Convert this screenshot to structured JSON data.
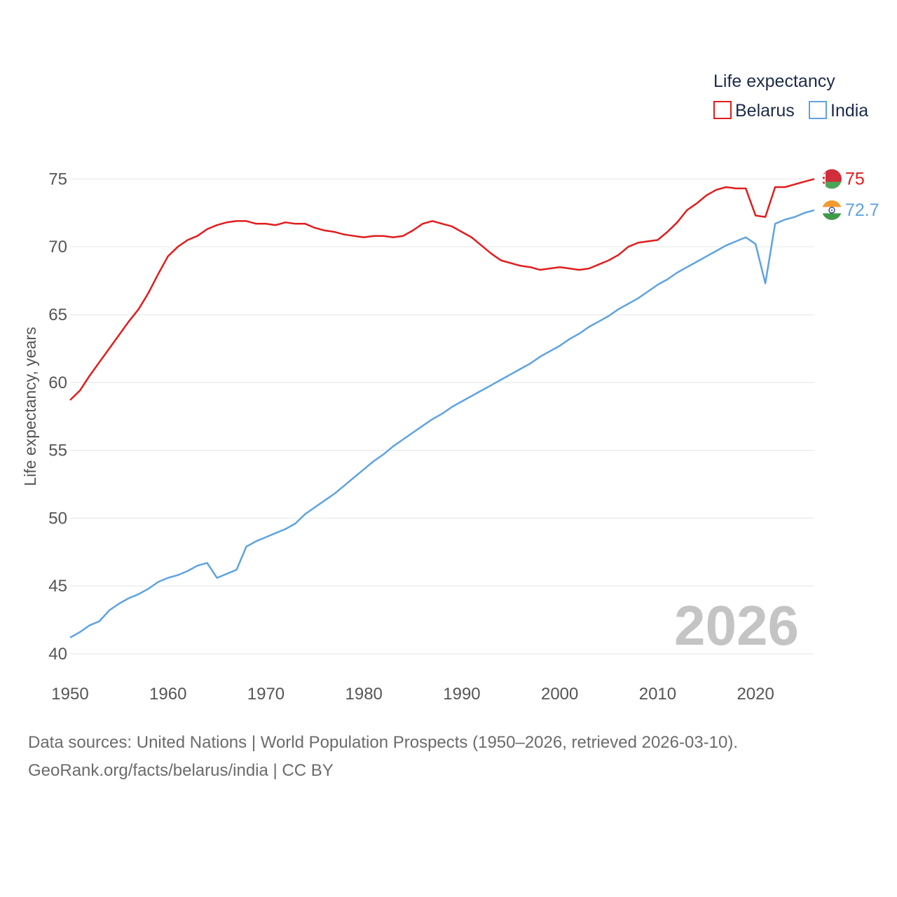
{
  "chart_data": {
    "type": "line",
    "legend": {
      "title": "Life expectancy",
      "placement": "top-right"
    },
    "ylabel": "Life expectancy, years",
    "xlim": [
      1950,
      2026
    ],
    "ylim": [
      40,
      76
    ],
    "x_ticks": [
      1950,
      1960,
      1970,
      1980,
      1990,
      2000,
      2010,
      2020
    ],
    "y_ticks": [
      40,
      45,
      50,
      55,
      60,
      65,
      70,
      75
    ],
    "year_label": "2026",
    "x": [
      1950,
      1951,
      1952,
      1953,
      1954,
      1955,
      1956,
      1957,
      1958,
      1959,
      1960,
      1961,
      1962,
      1963,
      1964,
      1965,
      1966,
      1967,
      1968,
      1969,
      1970,
      1971,
      1972,
      1973,
      1974,
      1975,
      1976,
      1977,
      1978,
      1979,
      1980,
      1981,
      1982,
      1983,
      1984,
      1985,
      1986,
      1987,
      1988,
      1989,
      1990,
      1991,
      1992,
      1993,
      1994,
      1995,
      1996,
      1997,
      1998,
      1999,
      2000,
      2001,
      2002,
      2003,
      2004,
      2005,
      2006,
      2007,
      2008,
      2009,
      2010,
      2011,
      2012,
      2013,
      2014,
      2015,
      2016,
      2017,
      2018,
      2019,
      2020,
      2021,
      2022,
      2023,
      2024,
      2025,
      2026
    ],
    "series": [
      {
        "name": "Belarus",
        "color": "#e11d1d",
        "end_label": "75",
        "flag": "belarus-flag-icon",
        "values": [
          58.7,
          59.4,
          60.5,
          61.5,
          62.5,
          63.5,
          64.5,
          65.4,
          66.6,
          68.0,
          69.3,
          70.0,
          70.5,
          70.8,
          71.3,
          71.6,
          71.8,
          71.9,
          71.9,
          71.7,
          71.7,
          71.6,
          71.8,
          71.7,
          71.7,
          71.4,
          71.2,
          71.1,
          70.9,
          70.8,
          70.7,
          70.8,
          70.8,
          70.7,
          70.8,
          71.2,
          71.7,
          71.9,
          71.7,
          71.5,
          71.1,
          70.7,
          70.1,
          69.5,
          69.0,
          68.8,
          68.6,
          68.5,
          68.3,
          68.4,
          68.5,
          68.4,
          68.3,
          68.4,
          68.7,
          69.0,
          69.4,
          70.0,
          70.3,
          70.4,
          70.5,
          71.1,
          71.8,
          72.7,
          73.2,
          73.8,
          74.2,
          74.4,
          74.3,
          74.3,
          72.3,
          72.2,
          74.4,
          74.4,
          74.6,
          74.8,
          75.0
        ]
      },
      {
        "name": "India",
        "color": "#5ea3e0",
        "end_label": "72.7",
        "flag": "india-flag-icon",
        "values": [
          41.2,
          41.6,
          42.1,
          42.4,
          43.2,
          43.7,
          44.1,
          44.4,
          44.8,
          45.3,
          45.6,
          45.8,
          46.1,
          46.5,
          46.7,
          45.6,
          45.9,
          46.2,
          47.9,
          48.3,
          48.6,
          48.9,
          49.2,
          49.6,
          50.3,
          50.8,
          51.3,
          51.8,
          52.4,
          53.0,
          53.6,
          54.2,
          54.7,
          55.3,
          55.8,
          56.3,
          56.8,
          57.3,
          57.7,
          58.2,
          58.6,
          59.0,
          59.4,
          59.8,
          60.2,
          60.6,
          61.0,
          61.4,
          61.9,
          62.3,
          62.7,
          63.2,
          63.6,
          64.1,
          64.5,
          64.9,
          65.4,
          65.8,
          66.2,
          66.7,
          67.2,
          67.6,
          68.1,
          68.5,
          68.9,
          69.3,
          69.7,
          70.1,
          70.4,
          70.7,
          70.2,
          67.3,
          71.7,
          72.0,
          72.2,
          72.5,
          72.7
        ]
      }
    ]
  },
  "footer": {
    "line1": "Data sources: United Nations | World Population Prospects (1950–2026, retrieved 2026-03-10).",
    "line2": "GeoRank.org/facts/belarus/india | CC BY"
  }
}
